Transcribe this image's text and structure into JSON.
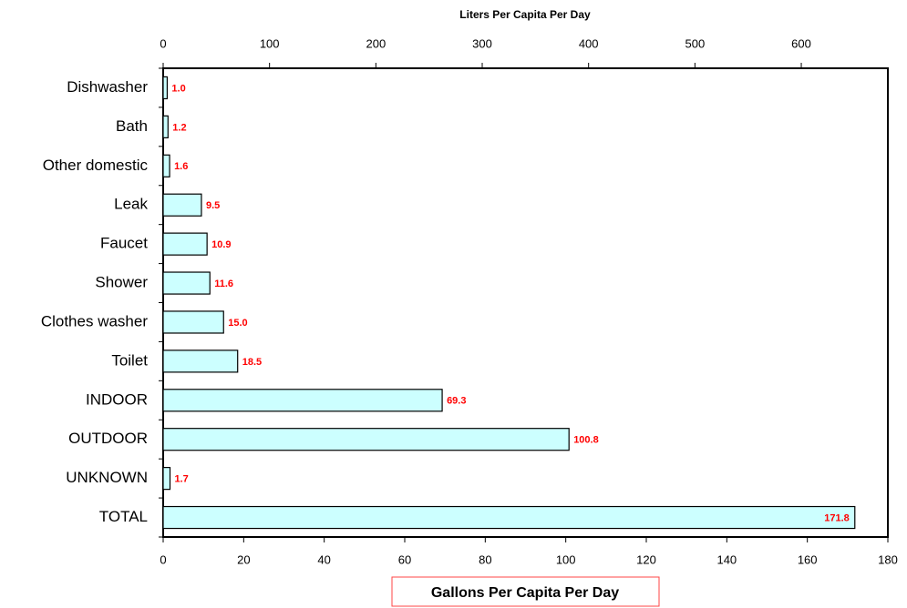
{
  "chart_data": {
    "type": "bar",
    "orientation": "horizontal",
    "title": "Liters Per Capita Per Day",
    "x_label": "Gallons Per Capita Per Day",
    "categories": [
      "Dishwasher",
      "Bath",
      "Other domestic",
      "Leak",
      "Faucet",
      "Shower",
      "Clothes washer",
      "Toilet",
      "INDOOR",
      "OUTDOOR",
      "UNKNOWN",
      "TOTAL"
    ],
    "values": [
      1.0,
      1.2,
      1.6,
      9.5,
      10.9,
      11.6,
      15.0,
      18.5,
      69.3,
      100.8,
      1.7,
      171.8
    ],
    "value_labels": [
      "1.0",
      "1.2",
      "1.6",
      "9.5",
      "10.9",
      "11.6",
      "15.0",
      "18.5",
      "69.3",
      "100.8",
      "1.7",
      "171.8"
    ],
    "color": "#ccffff",
    "label_color": "#ff0000",
    "xlim": [
      0,
      180
    ],
    "xticks": [
      0,
      20,
      40,
      60,
      80,
      100,
      120,
      140,
      160,
      180
    ],
    "x2lim": [
      0,
      681.4
    ],
    "x2ticks": [
      0,
      100,
      200,
      300,
      400,
      500,
      600
    ]
  }
}
